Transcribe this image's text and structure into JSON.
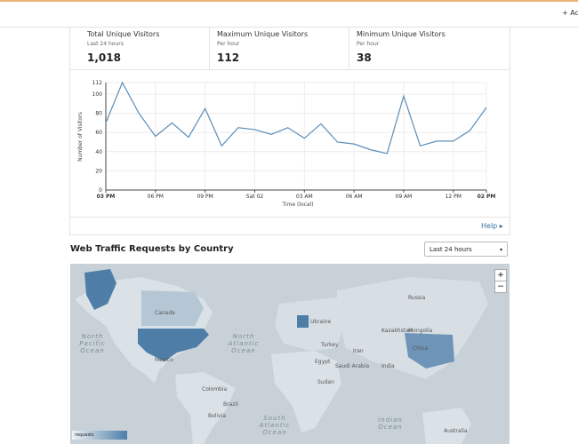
{
  "topbar": {
    "action": "+ Ac"
  },
  "stats": [
    {
      "title": "Total Unique Visitors",
      "period": "Last 24 hours",
      "value": "1,018"
    },
    {
      "title": "Maximum Unique Visitors",
      "period": "Per hour",
      "value": "112"
    },
    {
      "title": "Minimum Unique Visitors",
      "period": "Per hour",
      "value": "38"
    }
  ],
  "chart_data": {
    "type": "line",
    "y_label": "Number of Visitors",
    "x_label": "Time (local)",
    "color": "#5b8db8",
    "categories": [
      "03 PM",
      null,
      null,
      "06 PM",
      null,
      null,
      "09 PM",
      null,
      null,
      "Sat 02",
      null,
      null,
      "03 AM",
      null,
      null,
      "06 AM",
      null,
      null,
      "09 AM",
      null,
      null,
      "12 PM",
      null,
      "02 PM"
    ],
    "values": [
      70,
      112,
      80,
      56,
      70,
      55,
      85,
      46,
      65,
      63,
      58,
      65,
      54,
      69,
      50,
      48,
      42,
      38,
      98,
      46,
      51,
      51,
      62,
      86
    ],
    "ylim": [
      0,
      112
    ],
    "yticks": [
      0,
      20,
      40,
      60,
      80,
      100,
      112
    ],
    "grid": true
  },
  "help": "Help",
  "traffic": {
    "title": "Web Traffic Requests by Country",
    "range": "Last 24 hours",
    "zoom_in": "+",
    "zoom_out": "−",
    "legend": "requests",
    "labels": [
      {
        "text": "North Pacific Ocean",
        "kind": "ocean"
      },
      {
        "text": "North Atlantic Ocean",
        "kind": "ocean"
      },
      {
        "text": "South Atlantic Ocean",
        "kind": "ocean"
      },
      {
        "text": "Indian Ocean",
        "kind": "ocean"
      },
      {
        "text": "Canada",
        "kind": "land"
      },
      {
        "text": "Russia",
        "kind": "land"
      },
      {
        "text": "Kazakhstan",
        "kind": "land"
      },
      {
        "text": "Mongolia",
        "kind": "land"
      },
      {
        "text": "China",
        "kind": "land"
      },
      {
        "text": "India",
        "kind": "land"
      },
      {
        "text": "Turkey",
        "kind": "land"
      },
      {
        "text": "Ukraine",
        "kind": "land"
      },
      {
        "text": "Iran",
        "kind": "land"
      },
      {
        "text": "Egypt",
        "kind": "land"
      },
      {
        "text": "Saudi Arabia",
        "kind": "land"
      },
      {
        "text": "Sudan",
        "kind": "land"
      },
      {
        "text": "Mexico",
        "kind": "land"
      },
      {
        "text": "Colombia",
        "kind": "land"
      },
      {
        "text": "Brazil",
        "kind": "land"
      },
      {
        "text": "Bolivia",
        "kind": "land"
      },
      {
        "text": "Australia",
        "kind": "land"
      }
    ]
  }
}
